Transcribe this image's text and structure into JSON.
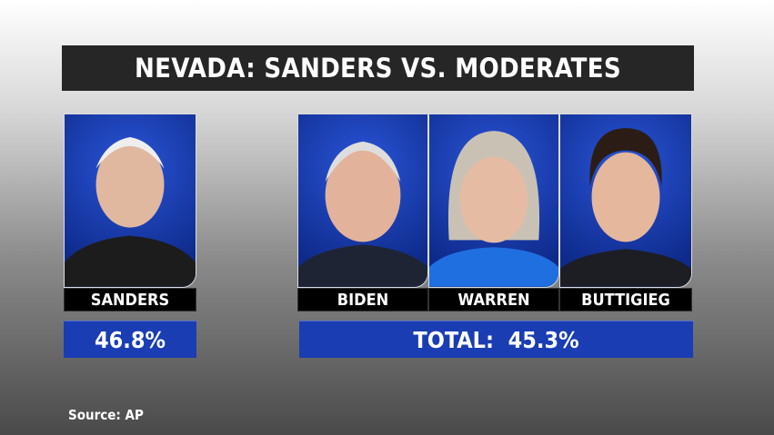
{
  "title": "NEVADA: SANDERS VS. MODERATES",
  "colors": {
    "title_bar": "#262626",
    "accent_blue": "#1a3db3",
    "label_bg": "#000000"
  },
  "left": {
    "candidate": {
      "name": "SANDERS",
      "photo": "sanders-portrait"
    },
    "percent": "46.8%"
  },
  "right": {
    "candidates": [
      {
        "name": "BIDEN",
        "photo": "biden-portrait"
      },
      {
        "name": "WARREN",
        "photo": "warren-portrait"
      },
      {
        "name": "BUTTIGIEG",
        "photo": "buttigieg-portrait"
      }
    ],
    "total": "TOTAL:  45.3%"
  },
  "source": "Source: AP"
}
